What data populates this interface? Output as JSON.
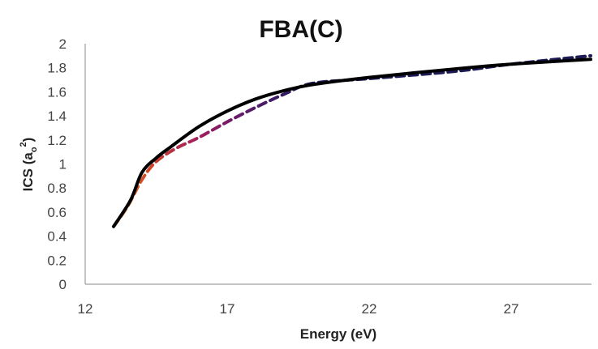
{
  "chart_data": {
    "type": "line",
    "title": "FBA(C)",
    "xlabel": "Energy (eV)",
    "ylabel_main": "ICS (a",
    "ylabel_sub": "o",
    "ylabel_sup": "2",
    "ylabel_close": ")",
    "xlim": [
      12,
      29.8
    ],
    "ylim": [
      0,
      2
    ],
    "xticks": [
      "12",
      "17",
      "22",
      "27"
    ],
    "xtick_values": [
      12,
      17,
      22,
      27
    ],
    "yticks": [
      "0",
      "0.2",
      "0.4",
      "0.6",
      "0.8",
      "1",
      "1.2",
      "1.4",
      "1.6",
      "1.8",
      "2"
    ],
    "ytick_values": [
      0,
      0.2,
      0.4,
      0.6,
      0.8,
      1,
      1.2,
      1.4,
      1.6,
      1.8,
      2
    ],
    "grid": false,
    "legend": "none",
    "series": [
      {
        "name": "solid",
        "style": "solid",
        "color": "#000000",
        "x": [
          13.0,
          13.6,
          14.0,
          14.5,
          15.0,
          16.0,
          17.0,
          18.0,
          19.0,
          20.0,
          22.0,
          25.0,
          27.0,
          29.8
        ],
        "y": [
          0.48,
          0.7,
          0.93,
          1.05,
          1.14,
          1.31,
          1.44,
          1.54,
          1.61,
          1.66,
          1.72,
          1.79,
          1.83,
          1.87
        ]
      },
      {
        "name": "dashed",
        "style": "dashed",
        "colors": [
          "#e8801e",
          "#c9402c",
          "#a8205a",
          "#701a68",
          "#3e1a68",
          "#1c1a55"
        ],
        "x": [
          13.0,
          13.5,
          14.0,
          14.5,
          15.2,
          16.0,
          17.0,
          18.0,
          19.0,
          20.0,
          22.0,
          25.0,
          27.0,
          29.8
        ],
        "y": [
          0.48,
          0.65,
          0.87,
          1.02,
          1.13,
          1.22,
          1.35,
          1.47,
          1.58,
          1.67,
          1.71,
          1.77,
          1.83,
          1.9
        ]
      }
    ]
  }
}
